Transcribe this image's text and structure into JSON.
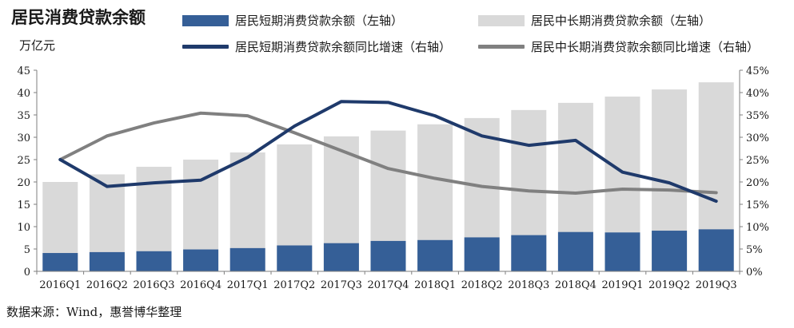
{
  "title": "居民消费贷款余额",
  "y_unit": "万亿元",
  "source": "数据来源：Wind，惠誉博华整理",
  "colors": {
    "short_bar": "#355f97",
    "long_bar": "#d9d9d9",
    "short_line": "#1f3a6b",
    "long_line": "#808080"
  },
  "legend": [
    {
      "label": "居民短期消费贷款余额（左轴）",
      "kind": "box",
      "color_key": "short_bar"
    },
    {
      "label": "居民中长期消费贷款余额（左轴）",
      "kind": "box",
      "color_key": "long_bar"
    },
    {
      "label": "居民短期消费贷款余额同比增速（右轴）",
      "kind": "line",
      "color_key": "short_line"
    },
    {
      "label": "居民中长期消费贷款余额同比增速（右轴）",
      "kind": "line",
      "color_key": "long_line"
    }
  ],
  "chart_data": {
    "type": "bar",
    "stacked": false,
    "categories": [
      "2016Q1",
      "2016Q2",
      "2016Q3",
      "2016Q4",
      "2017Q1",
      "2017Q2",
      "2017Q3",
      "2017Q4",
      "2018Q1",
      "2018Q2",
      "2018Q3",
      "2018Q4",
      "2019Q1",
      "2019Q2",
      "2019Q3"
    ],
    "left_axis": {
      "min": 0,
      "max": 45,
      "step": 5,
      "ticks": [
        "0",
        "5",
        "10",
        "15",
        "20",
        "25",
        "30",
        "35",
        "40",
        "45"
      ]
    },
    "right_axis": {
      "min": 0,
      "max": 0.45,
      "step": 0.05,
      "ticks": [
        "0%",
        "5%",
        "10%",
        "15%",
        "20%",
        "25%",
        "30%",
        "35%",
        "40%",
        "45%"
      ]
    },
    "series": [
      {
        "name": "居民中长期消费贷款余额（左轴）",
        "type": "bar",
        "axis": "left",
        "values": [
          20.0,
          21.7,
          23.4,
          25.0,
          26.6,
          28.4,
          30.2,
          31.5,
          32.9,
          34.3,
          36.1,
          37.7,
          39.1,
          40.7,
          42.3
        ]
      },
      {
        "name": "居民短期消费贷款余额（左轴）",
        "type": "bar",
        "axis": "left",
        "values": [
          4.1,
          4.3,
          4.5,
          4.9,
          5.2,
          5.8,
          6.3,
          6.8,
          7.0,
          7.6,
          8.1,
          8.8,
          8.7,
          9.1,
          9.4
        ]
      },
      {
        "name": "居民短期消费贷款余额同比增速（右轴）",
        "type": "line",
        "axis": "right",
        "values": [
          0.25,
          0.19,
          0.198,
          0.204,
          0.255,
          0.325,
          0.38,
          0.378,
          0.348,
          0.303,
          0.282,
          0.293,
          0.222,
          0.198,
          0.157
        ]
      },
      {
        "name": "居民中长期消费贷款余额同比增速（右轴）",
        "type": "line",
        "axis": "right",
        "values": [
          0.25,
          0.303,
          0.332,
          0.354,
          0.348,
          0.31,
          0.27,
          0.23,
          0.208,
          0.19,
          0.18,
          0.175,
          0.184,
          0.182,
          0.176
        ]
      }
    ],
    "grid": false,
    "legend_position": "top"
  }
}
